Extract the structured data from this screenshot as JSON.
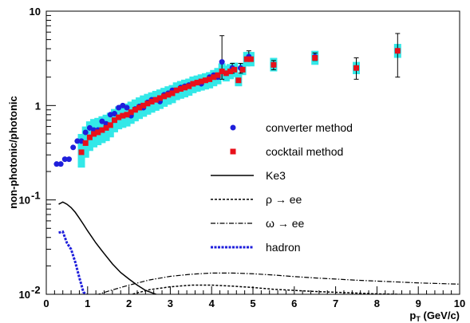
{
  "chart_data": {
    "type": "scatter",
    "xlabel": "p_T (GeV/c)",
    "ylabel": "non-photonic/photonic",
    "xlim": [
      0,
      10
    ],
    "ylim": [
      0.01,
      10
    ],
    "yscale": "log",
    "x_ticks": [
      "0",
      "1",
      "2",
      "3",
      "4",
      "5",
      "6",
      "7",
      "8",
      "9",
      "10"
    ],
    "y_ticks": [
      {
        "value": 0.01,
        "base": "10",
        "exp": "-2"
      },
      {
        "value": 0.1,
        "base": "10",
        "exp": "-1"
      },
      {
        "value": 1,
        "base": "1",
        "exp": ""
      },
      {
        "value": 10,
        "base": "10",
        "exp": ""
      }
    ],
    "legend": {
      "placement": "center-right",
      "items": [
        {
          "label": "converter method",
          "kind": "marker",
          "shape": "circle",
          "color": "#1f1fdb"
        },
        {
          "label": "cocktail method",
          "kind": "marker",
          "shape": "square",
          "color": "#e8101a"
        },
        {
          "label": "Ke3",
          "kind": "line",
          "dash": "",
          "color": "#000000",
          "width": 1.5
        },
        {
          "label": "ρ → ee",
          "kind": "line",
          "dash": "3,2",
          "color": "#000000",
          "width": 1.5
        },
        {
          "label": "ω → ee",
          "kind": "line",
          "dash": "6,2,1.5,2",
          "color": "#000000",
          "width": 1.2
        },
        {
          "label": "hadron",
          "kind": "line",
          "dash": "3,1.5",
          "color": "#1f1fdb",
          "width": 3
        }
      ]
    },
    "series": [
      {
        "name": "converter method",
        "kind": "points",
        "marker": "circle",
        "color": "#1f1fdb",
        "x": [
          0.25,
          0.35,
          0.45,
          0.55,
          0.65,
          0.75,
          0.85,
          0.95,
          1.05,
          1.15,
          1.25,
          1.35,
          1.45,
          1.55,
          1.65,
          1.75,
          1.85,
          1.95,
          2.05,
          2.15,
          2.25,
          2.35,
          2.45,
          2.55,
          2.65,
          2.75,
          2.85,
          2.95,
          3.05,
          3.15,
          3.25,
          3.35,
          3.45,
          3.55,
          3.65,
          3.75,
          3.85,
          3.95,
          4.05,
          4.15,
          4.25,
          4.35,
          4.5,
          4.7,
          4.9,
          5.5,
          6.5,
          7.5,
          8.5
        ],
        "y": [
          0.24,
          0.24,
          0.27,
          0.27,
          0.36,
          0.42,
          0.42,
          0.52,
          0.58,
          0.55,
          0.55,
          0.68,
          0.64,
          0.8,
          0.82,
          0.95,
          1.0,
          0.95,
          0.78,
          0.92,
          0.98,
          0.95,
          1.08,
          1.15,
          1.15,
          1.1,
          1.3,
          1.35,
          1.45,
          1.45,
          1.55,
          1.6,
          1.65,
          1.7,
          1.75,
          1.7,
          1.85,
          2.0,
          2.1,
          2.0,
          2.9,
          2.2,
          2.5,
          2.5,
          3.3,
          2.7,
          3.3,
          2.5,
          3.8
        ],
        "err_low": [
          0.0,
          0.0,
          0.0,
          0.0,
          0.0,
          0.0,
          0.0,
          0.0,
          0.0,
          0.0,
          0.0,
          0.0,
          0.0,
          0.0,
          0.0,
          0.0,
          0.0,
          0.0,
          0.0,
          0.0,
          0.0,
          0.0,
          0.0,
          0.0,
          0.0,
          0.0,
          0.0,
          0.0,
          0.0,
          0.0,
          0.0,
          0.0,
          0.0,
          0.0,
          0.0,
          0.0,
          0.0,
          0.0,
          0.0,
          0.0,
          1.0,
          0.0,
          0.3,
          0.3,
          0.3,
          0.3,
          0.3,
          0.6,
          1.8
        ],
        "err_high": [
          0.0,
          0.0,
          0.0,
          0.0,
          0.0,
          0.0,
          0.0,
          0.0,
          0.0,
          0.0,
          0.0,
          0.0,
          0.0,
          0.0,
          0.0,
          0.0,
          0.0,
          0.0,
          0.0,
          0.0,
          0.0,
          0.0,
          0.0,
          0.0,
          0.0,
          0.0,
          0.0,
          0.0,
          0.0,
          0.0,
          0.0,
          0.0,
          0.0,
          0.0,
          0.0,
          0.0,
          0.0,
          0.0,
          0.0,
          0.0,
          2.6,
          0.0,
          0.3,
          0.3,
          0.5,
          0.3,
          0.3,
          0.7,
          2.0
        ]
      },
      {
        "name": "cocktail method",
        "kind": "points",
        "marker": "square",
        "color": "#e8101a",
        "band_color": "#33e8e8",
        "x": [
          0.85,
          0.95,
          1.05,
          1.15,
          1.25,
          1.35,
          1.45,
          1.55,
          1.65,
          1.75,
          1.85,
          1.95,
          2.05,
          2.15,
          2.25,
          2.35,
          2.45,
          2.55,
          2.65,
          2.75,
          2.85,
          2.95,
          3.05,
          3.15,
          3.25,
          3.35,
          3.45,
          3.55,
          3.65,
          3.75,
          3.85,
          3.95,
          4.05,
          4.15,
          4.25,
          4.35,
          4.45,
          4.55,
          4.65,
          4.75,
          4.85,
          4.95,
          5.5,
          6.5,
          7.5,
          8.5
        ],
        "y": [
          0.32,
          0.4,
          0.46,
          0.5,
          0.52,
          0.55,
          0.58,
          0.62,
          0.7,
          0.75,
          0.78,
          0.8,
          0.85,
          0.9,
          0.95,
          1.0,
          1.05,
          1.1,
          1.15,
          1.2,
          1.25,
          1.3,
          1.35,
          1.45,
          1.5,
          1.55,
          1.6,
          1.7,
          1.75,
          1.8,
          1.85,
          1.9,
          2.0,
          2.1,
          2.3,
          2.2,
          2.3,
          2.4,
          1.85,
          2.4,
          3.1,
          3.1,
          2.7,
          3.2,
          2.5,
          3.8
        ],
        "band_low": [
          0.22,
          0.28,
          0.33,
          0.36,
          0.38,
          0.4,
          0.42,
          0.46,
          0.52,
          0.56,
          0.58,
          0.6,
          0.64,
          0.68,
          0.72,
          0.76,
          0.8,
          0.84,
          0.88,
          0.92,
          0.97,
          1.02,
          1.06,
          1.14,
          1.18,
          1.22,
          1.27,
          1.35,
          1.4,
          1.44,
          1.48,
          1.52,
          1.6,
          1.68,
          1.9,
          1.8,
          1.9,
          2.0,
          1.6,
          2.1,
          2.6,
          2.6,
          2.3,
          2.7,
          2.15,
          3.2
        ],
        "band_high": [
          0.5,
          0.6,
          0.68,
          0.72,
          0.74,
          0.77,
          0.8,
          0.84,
          0.92,
          0.98,
          1.02,
          1.05,
          1.1,
          1.16,
          1.22,
          1.28,
          1.33,
          1.38,
          1.43,
          1.48,
          1.54,
          1.6,
          1.65,
          1.76,
          1.82,
          1.88,
          1.93,
          2.03,
          2.08,
          2.14,
          2.2,
          2.26,
          2.38,
          2.5,
          2.8,
          2.65,
          2.75,
          2.85,
          2.15,
          2.8,
          3.7,
          3.7,
          3.2,
          3.8,
          2.9,
          4.5
        ]
      },
      {
        "name": "Ke3",
        "kind": "line",
        "color": "#000000",
        "dash": "",
        "width": 1.5,
        "x": [
          0.3,
          0.4,
          0.5,
          0.6,
          0.7,
          0.8,
          0.9,
          1.0,
          1.2,
          1.4,
          1.6,
          1.8,
          2.0,
          2.2,
          2.4,
          2.6,
          2.8
        ],
        "y": [
          0.09,
          0.095,
          0.09,
          0.083,
          0.074,
          0.064,
          0.055,
          0.047,
          0.035,
          0.027,
          0.021,
          0.017,
          0.0145,
          0.0125,
          0.011,
          0.0102,
          0.0095
        ]
      },
      {
        "name": "ρ → ee",
        "kind": "line",
        "color": "#000000",
        "dash": "3,2",
        "width": 1.5,
        "x": [
          2.0,
          2.5,
          3.0,
          3.5,
          4.0,
          4.5,
          5.0,
          5.5,
          6.0,
          6.5,
          7.0,
          7.5,
          8.0,
          8.5,
          9.0,
          9.5,
          10.0
        ],
        "y": [
          0.0098,
          0.0112,
          0.012,
          0.0125,
          0.0125,
          0.0122,
          0.0118,
          0.0113,
          0.011,
          0.0107,
          0.0105,
          0.0103,
          0.0101,
          0.01,
          0.0098,
          0.0097,
          0.0096
        ]
      },
      {
        "name": "ω → ee",
        "kind": "line",
        "color": "#000000",
        "dash": "6,2,1.5,2",
        "width": 1.2,
        "x": [
          1.2,
          1.5,
          2.0,
          2.5,
          3.0,
          3.5,
          4.0,
          4.5,
          5.0,
          5.5,
          6.0,
          6.5,
          7.0,
          7.5,
          8.0,
          8.5,
          9.0,
          9.5,
          10.0
        ],
        "y": [
          0.0098,
          0.0108,
          0.0125,
          0.0142,
          0.0155,
          0.0163,
          0.0168,
          0.0168,
          0.0165,
          0.016,
          0.0154,
          0.0149,
          0.0145,
          0.0141,
          0.0138,
          0.0135,
          0.0132,
          0.013,
          0.0128
        ]
      },
      {
        "name": "hadron",
        "kind": "line",
        "color": "#1f1fdb",
        "dash": "3,1.5",
        "width": 3,
        "x": [
          0.3,
          0.4,
          0.5,
          0.6,
          0.7,
          0.8,
          0.9,
          1.0,
          1.5,
          2.0
        ],
        "y": [
          0.045,
          0.046,
          0.035,
          0.03,
          0.022,
          0.015,
          0.0105,
          0.0098,
          0.0098,
          0.0098
        ]
      }
    ]
  }
}
